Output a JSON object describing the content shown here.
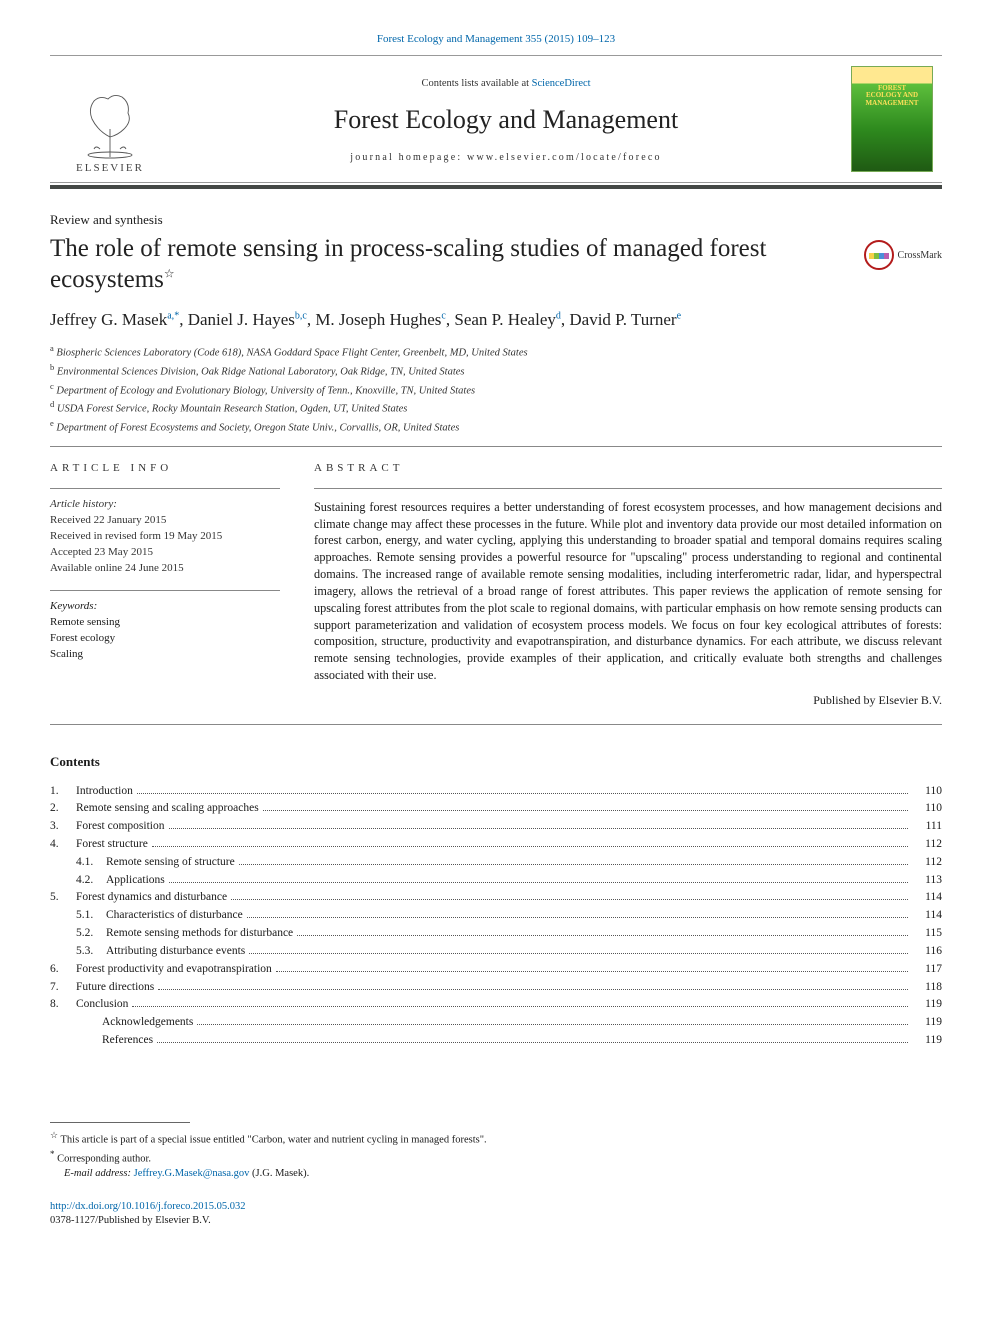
{
  "top_citation": "Forest Ecology and Management 355 (2015) 109–123",
  "masthead": {
    "contents_prefix": "Contents lists available at ",
    "contents_link": "ScienceDirect",
    "journal": "Forest Ecology and Management",
    "homepage_label": "journal homepage: www.elsevier.com/locate/foreco",
    "publisher_word": "ELSEVIER",
    "cover_top": "",
    "cover_title": "FOREST\nECOLOGY AND\nMANAGEMENT"
  },
  "article_type": "Review and synthesis",
  "title": "The role of remote sensing in process-scaling studies of managed forest ecosystems",
  "title_star": "☆",
  "crossmark_label": "CrossMark",
  "authors_html": {
    "a1_name": "Jeffrey G. Masek",
    "a1_sup": "a,",
    "a1_star": "*",
    "a2_name": "Daniel J. Hayes",
    "a2_sup": "b,c",
    "a3_name": "M. Joseph Hughes",
    "a3_sup": "c",
    "a4_name": "Sean P. Healey",
    "a4_sup": "d",
    "a5_name": "David P. Turner",
    "a5_sup": "e"
  },
  "affiliations": [
    {
      "key": "a",
      "text": "Biospheric Sciences Laboratory (Code 618), NASA Goddard Space Flight Center, Greenbelt, MD, United States"
    },
    {
      "key": "b",
      "text": "Environmental Sciences Division, Oak Ridge National Laboratory, Oak Ridge, TN, United States"
    },
    {
      "key": "c",
      "text": "Department of Ecology and Evolutionary Biology, University of Tenn., Knoxville, TN, United States"
    },
    {
      "key": "d",
      "text": "USDA Forest Service, Rocky Mountain Research Station, Ogden, UT, United States"
    },
    {
      "key": "e",
      "text": "Department of Forest Ecosystems and Society, Oregon State Univ., Corvallis, OR, United States"
    }
  ],
  "info": {
    "heading": "ARTICLE INFO",
    "history_label": "Article history:",
    "received": "Received 22 January 2015",
    "revised": "Received in revised form 19 May 2015",
    "accepted": "Accepted 23 May 2015",
    "online": "Available online 24 June 2015",
    "keywords_label": "Keywords:",
    "keywords": [
      "Remote sensing",
      "Forest ecology",
      "Scaling"
    ]
  },
  "abstract": {
    "heading": "ABSTRACT",
    "text": "Sustaining forest resources requires a better understanding of forest ecosystem processes, and how management decisions and climate change may affect these processes in the future. While plot and inventory data provide our most detailed information on forest carbon, energy, and water cycling, applying this understanding to broader spatial and temporal domains requires scaling approaches. Remote sensing provides a powerful resource for \"upscaling\" process understanding to regional and continental domains. The increased range of available remote sensing modalities, including interferometric radar, lidar, and hyperspectral imagery, allows the retrieval of a broad range of forest attributes. This paper reviews the application of remote sensing for upscaling forest attributes from the plot scale to regional domains, with particular emphasis on how remote sensing products can support parameterization and validation of ecosystem process models. We focus on four key ecological attributes of forests: composition, structure, productivity and evapotranspiration, and disturbance dynamics. For each attribute, we discuss relevant remote sensing technologies, provide examples of their application, and critically evaluate both strengths and challenges associated with their use.",
    "published_by": "Published by Elsevier B.V."
  },
  "contents": {
    "heading": "Contents",
    "items": [
      {
        "num": "1.",
        "title": "Introduction",
        "page": "110"
      },
      {
        "num": "2.",
        "title": "Remote sensing and scaling approaches",
        "page": "110"
      },
      {
        "num": "3.",
        "title": "Forest composition",
        "page": "111"
      },
      {
        "num": "4.",
        "title": "Forest structure",
        "page": "112"
      },
      {
        "num": "",
        "sub": "4.1.",
        "title": "Remote sensing of structure",
        "page": "112"
      },
      {
        "num": "",
        "sub": "4.2.",
        "title": "Applications",
        "page": "113"
      },
      {
        "num": "5.",
        "title": "Forest dynamics and disturbance",
        "page": "114"
      },
      {
        "num": "",
        "sub": "5.1.",
        "title": "Characteristics of disturbance",
        "page": "114"
      },
      {
        "num": "",
        "sub": "5.2.",
        "title": "Remote sensing methods for disturbance",
        "page": "115"
      },
      {
        "num": "",
        "sub": "5.3.",
        "title": "Attributing disturbance events",
        "page": "116"
      },
      {
        "num": "6.",
        "title": "Forest productivity and evapotranspiration",
        "page": "117"
      },
      {
        "num": "7.",
        "title": "Future directions",
        "page": "118"
      },
      {
        "num": "8.",
        "title": "Conclusion",
        "page": "119"
      },
      {
        "num": "",
        "title": "Acknowledgements",
        "page": "119",
        "indent": true
      },
      {
        "num": "",
        "title": "References",
        "page": "119",
        "indent": true
      }
    ]
  },
  "footnotes": {
    "star_note": "This article is part of a special issue entitled \"Carbon, water and nutrient cycling in managed forests\".",
    "corr_label": "Corresponding author.",
    "email_label": "E-mail address:",
    "email": "Jeffrey.G.Masek@nasa.gov",
    "email_who": "(J.G. Masek)."
  },
  "doi": {
    "url": "http://dx.doi.org/10.1016/j.foreco.2015.05.032",
    "issn_line": "0378-1127/Published by Elsevier B.V."
  },
  "colors": {
    "link": "#0066aa",
    "rule_dark": "#444845",
    "crossmark_ring": "#b31b1b"
  }
}
